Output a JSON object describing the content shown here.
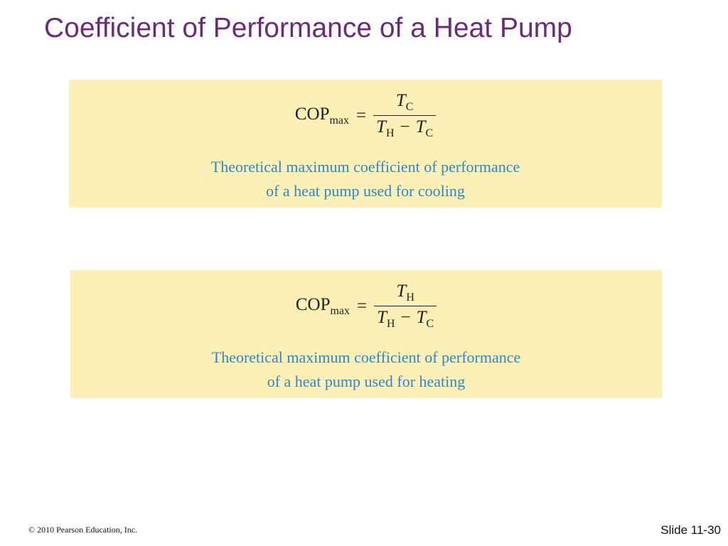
{
  "header": {
    "title": "Coefficient of Performance of a Heat Pump"
  },
  "boxes": [
    {
      "formula": {
        "lhs": "COP",
        "lhs_sub": "max",
        "eq": "=",
        "num": {
          "var": "T",
          "sub": "C"
        },
        "den": {
          "var1": "T",
          "sub1": "H",
          "op": "−",
          "var2": "T",
          "sub2": "C"
        }
      },
      "caption": [
        "Theoretical maximum coefficient of performance",
        "of a heat pump used for cooling"
      ]
    },
    {
      "formula": {
        "lhs": "COP",
        "lhs_sub": "max",
        "eq": "=",
        "num": {
          "var": "T",
          "sub": "H"
        },
        "den": {
          "var1": "T",
          "sub1": "H",
          "op": "−",
          "var2": "T",
          "sub2": "C"
        }
      },
      "caption": [
        "Theoretical maximum coefficient of performance",
        "of a heat pump used for heating"
      ]
    }
  ],
  "footer": {
    "copyright": "© 2010 Pearson Education, Inc.",
    "slide": "Slide 11-30"
  }
}
